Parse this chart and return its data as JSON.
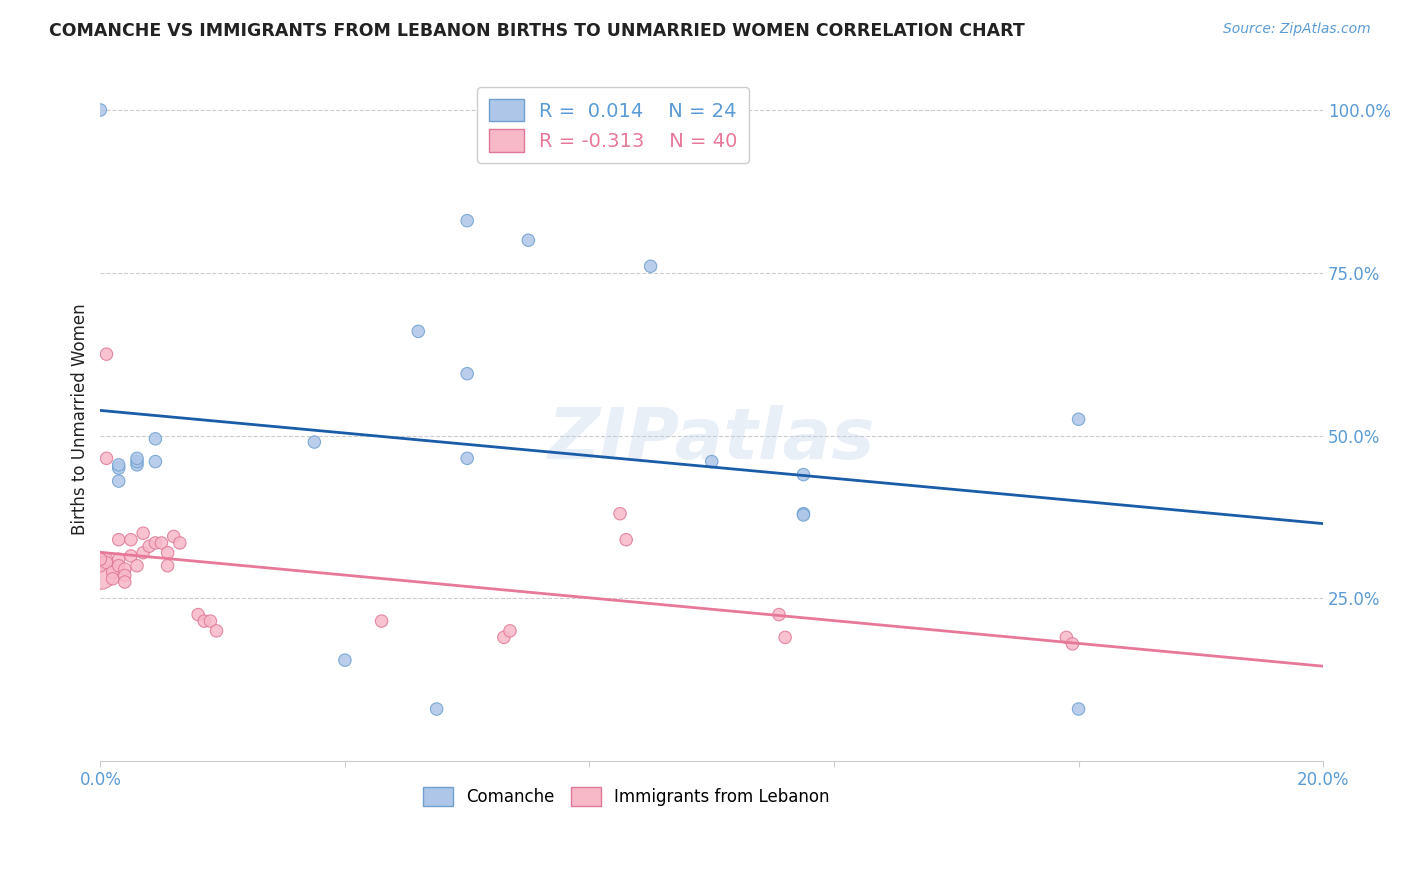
{
  "title": "COMANCHE VS IMMIGRANTS FROM LEBANON BIRTHS TO UNMARRIED WOMEN CORRELATION CHART",
  "source": "Source: ZipAtlas.com",
  "ylabel": "Births to Unmarried Women",
  "xlim": [
    0.0,
    0.2
  ],
  "ylim": [
    0.0,
    1.05
  ],
  "xticks": [
    0.0,
    0.04,
    0.08,
    0.12,
    0.16,
    0.2
  ],
  "xticklabels": [
    "0.0%",
    "",
    "",
    "",
    "",
    "20.0%"
  ],
  "yticks": [
    0.25,
    0.5,
    0.75,
    1.0
  ],
  "yticklabels": [
    "25.0%",
    "50.0%",
    "75.0%",
    "100.0%"
  ],
  "title_color": "#222222",
  "axis_color": "#5b9bd5",
  "watermark": "ZIPatlas",
  "comanche_color": "#aec6e8",
  "comanche_edge": "#6fa0d0",
  "lebanon_color": "#f7b8c8",
  "lebanon_edge": "#e07898",
  "trend_blue": "#1a5ca8",
  "trend_pink": "#e87898",
  "bg_color": "#ffffff",
  "grid_color": "#cccccc",
  "comanche_x": [
    0.035,
    0.052,
    0.06,
    0.07,
    0.09,
    0.06,
    0.06,
    0.1,
    0.16,
    0.003,
    0.006,
    0.009,
    0.009,
    0.04,
    0.055,
    0.115,
    0.16,
    0.115,
    0.115,
    0.0,
    0.003,
    0.003,
    0.006,
    0.006
  ],
  "comanche_y": [
    0.49,
    0.66,
    0.83,
    0.8,
    0.76,
    0.595,
    0.465,
    0.46,
    0.525,
    0.45,
    0.455,
    0.46,
    0.495,
    0.155,
    0.08,
    0.38,
    0.08,
    0.378,
    0.44,
    1.0,
    0.43,
    0.455,
    0.46,
    0.465
  ],
  "comanche_size": [
    80,
    80,
    80,
    80,
    80,
    80,
    80,
    80,
    80,
    80,
    80,
    80,
    80,
    80,
    80,
    80,
    80,
    80,
    80,
    80,
    80,
    80,
    80,
    80
  ],
  "lebanon_x": [
    0.0,
    0.0,
    0.001,
    0.001,
    0.002,
    0.002,
    0.003,
    0.003,
    0.003,
    0.004,
    0.004,
    0.004,
    0.005,
    0.005,
    0.006,
    0.007,
    0.007,
    0.008,
    0.009,
    0.01,
    0.011,
    0.011,
    0.012,
    0.013,
    0.016,
    0.017,
    0.018,
    0.019,
    0.046,
    0.066,
    0.067,
    0.085,
    0.086,
    0.111,
    0.112,
    0.158,
    0.159,
    0.001,
    0.001,
    0.0
  ],
  "lebanon_y": [
    0.29,
    0.3,
    0.31,
    0.305,
    0.29,
    0.28,
    0.34,
    0.31,
    0.3,
    0.295,
    0.285,
    0.275,
    0.34,
    0.315,
    0.3,
    0.32,
    0.35,
    0.33,
    0.335,
    0.335,
    0.32,
    0.3,
    0.345,
    0.335,
    0.225,
    0.215,
    0.215,
    0.2,
    0.215,
    0.19,
    0.2,
    0.38,
    0.34,
    0.225,
    0.19,
    0.19,
    0.18,
    0.465,
    0.625,
    0.31
  ],
  "lebanon_size_large": 600,
  "lebanon_size_small": 80,
  "lebanon_large_idx": 0
}
